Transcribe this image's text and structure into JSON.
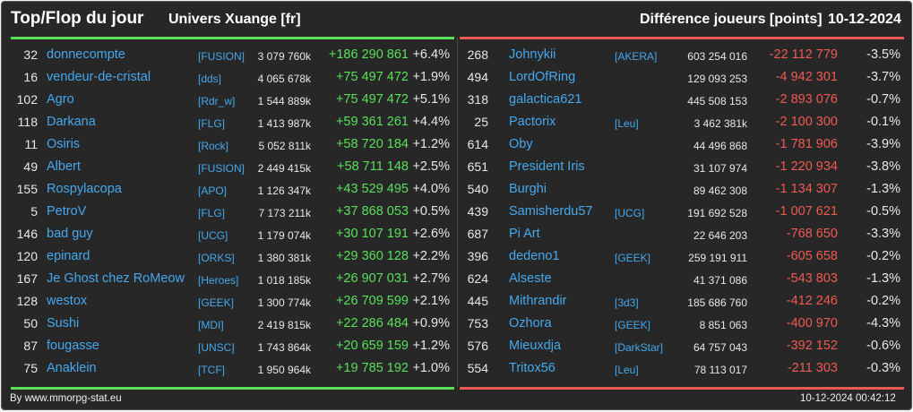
{
  "header": {
    "title": "Top/Flop du jour",
    "universe": "Univers Xuange [fr]",
    "diff_label": "Différence joueurs [points]",
    "date": "10-12-2024"
  },
  "colors": {
    "background": "#272727",
    "gain": "#58e05a",
    "loss": "#f05a52",
    "link": "#44a8ee",
    "text": "#e8e8e8"
  },
  "top": [
    {
      "rank": "32",
      "name": "donnecompte",
      "alliance": "[FUSION]",
      "points": "3 079 760k",
      "change": "+186 290 861",
      "pct": "+6.4%"
    },
    {
      "rank": "16",
      "name": "vendeur-de-cristal",
      "alliance": "[dds]",
      "points": "4 065 678k",
      "change": "+75 497 472",
      "pct": "+1.9%"
    },
    {
      "rank": "102",
      "name": "Agro",
      "alliance": "[Rdr_w]",
      "points": "1 544 889k",
      "change": "+75 497 472",
      "pct": "+5.1%"
    },
    {
      "rank": "118",
      "name": "Darkana",
      "alliance": "[FLG]",
      "points": "1 413 987k",
      "change": "+59 361 261",
      "pct": "+4.4%"
    },
    {
      "rank": "11",
      "name": "Osiris",
      "alliance": "[Rock]",
      "points": "5 052 811k",
      "change": "+58 720 184",
      "pct": "+1.2%"
    },
    {
      "rank": "49",
      "name": "Albert",
      "alliance": "[FUSION]",
      "points": "2 449 415k",
      "change": "+58 711 148",
      "pct": "+2.5%"
    },
    {
      "rank": "155",
      "name": "Rospylacopa",
      "alliance": "[APO]",
      "points": "1 126 347k",
      "change": "+43 529 495",
      "pct": "+4.0%"
    },
    {
      "rank": "5",
      "name": "PetroV",
      "alliance": "[FLG]",
      "points": "7 173 211k",
      "change": "+37 868 053",
      "pct": "+0.5%"
    },
    {
      "rank": "146",
      "name": "bad guy",
      "alliance": "[UCG]",
      "points": "1 179 074k",
      "change": "+30 107 191",
      "pct": "+2.6%"
    },
    {
      "rank": "120",
      "name": "epinard",
      "alliance": "[ORKS]",
      "points": "1 380 381k",
      "change": "+29 360 128",
      "pct": "+2.2%"
    },
    {
      "rank": "167",
      "name": "Je Ghost chez RoMeow",
      "alliance": "[Heroes]",
      "points": "1 018 185k",
      "change": "+26 907 031",
      "pct": "+2.7%"
    },
    {
      "rank": "128",
      "name": "westox",
      "alliance": "[GEEK]",
      "points": "1 300 774k",
      "change": "+26 709 599",
      "pct": "+2.1%"
    },
    {
      "rank": "50",
      "name": "Sushi",
      "alliance": "[MDI]",
      "points": "2 419 815k",
      "change": "+22 286 484",
      "pct": "+0.9%"
    },
    {
      "rank": "87",
      "name": "fougasse",
      "alliance": "[UNSC]",
      "points": "1 743 864k",
      "change": "+20 659 159",
      "pct": "+1.2%"
    },
    {
      "rank": "75",
      "name": "Anaklein",
      "alliance": "[TCF]",
      "points": "1 950 964k",
      "change": "+19 785 192",
      "pct": "+1.0%"
    }
  ],
  "flop": [
    {
      "rank": "268",
      "name": "Johnykii",
      "alliance": "[AKERA]",
      "points": "603 254 016",
      "change": "-22 112 779",
      "pct": "-3.5%"
    },
    {
      "rank": "494",
      "name": "LordOfRing",
      "alliance": "",
      "points": "129 093 253",
      "change": "-4 942 301",
      "pct": "-3.7%"
    },
    {
      "rank": "318",
      "name": "galactica621",
      "alliance": "",
      "points": "445 508 153",
      "change": "-2 893 076",
      "pct": "-0.7%"
    },
    {
      "rank": "25",
      "name": "Pactorix",
      "alliance": "[Leu]",
      "points": "3 462 381k",
      "change": "-2 100 300",
      "pct": "-0.1%"
    },
    {
      "rank": "614",
      "name": "Oby",
      "alliance": "",
      "points": "44 496 868",
      "change": "-1 781 906",
      "pct": "-3.9%"
    },
    {
      "rank": "651",
      "name": "President Iris",
      "alliance": "",
      "points": "31 107 974",
      "change": "-1 220 934",
      "pct": "-3.8%"
    },
    {
      "rank": "540",
      "name": "Burghi",
      "alliance": "",
      "points": "89 462 308",
      "change": "-1 134 307",
      "pct": "-1.3%"
    },
    {
      "rank": "439",
      "name": "Samisherdu57",
      "alliance": "[UCG]",
      "points": "191 692 528",
      "change": "-1 007 621",
      "pct": "-0.5%"
    },
    {
      "rank": "687",
      "name": "Pi Art",
      "alliance": "",
      "points": "22 646 203",
      "change": "-768 650",
      "pct": "-3.3%"
    },
    {
      "rank": "396",
      "name": "dedeno1",
      "alliance": "[GEEK]",
      "points": "259 191 911",
      "change": "-605 658",
      "pct": "-0.2%"
    },
    {
      "rank": "624",
      "name": "Alseste",
      "alliance": "",
      "points": "41 371 086",
      "change": "-543 803",
      "pct": "-1.3%"
    },
    {
      "rank": "445",
      "name": "Mithrandir",
      "alliance": "[3d3]",
      "points": "185 686 760",
      "change": "-412 246",
      "pct": "-0.2%"
    },
    {
      "rank": "753",
      "name": "Ozhora",
      "alliance": "[GEEK]",
      "points": "8 851 063",
      "change": "-400 970",
      "pct": "-4.3%"
    },
    {
      "rank": "576",
      "name": "Mieuxdja",
      "alliance": "[DarkStar]",
      "points": "64 757 043",
      "change": "-392 152",
      "pct": "-0.6%"
    },
    {
      "rank": "554",
      "name": "Tritox56",
      "alliance": "[Leu]",
      "points": "78 113 017",
      "change": "-211 303",
      "pct": "-0.3%"
    }
  ],
  "footer": {
    "source": "By www.mmorpg-stat.eu",
    "timestamp": "10-12-2024 00:42:12"
  }
}
